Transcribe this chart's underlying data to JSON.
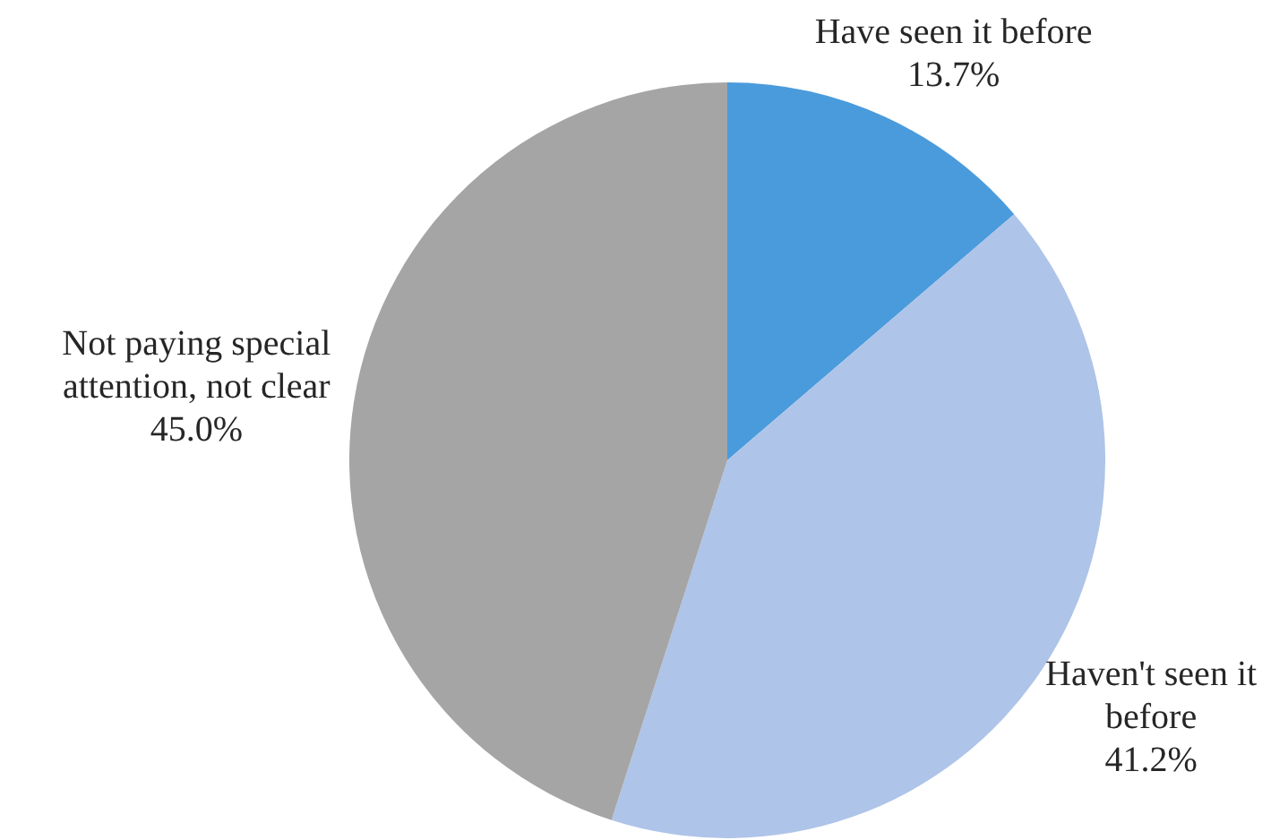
{
  "chart_data": {
    "type": "pie",
    "categories": [
      "Have seen it before",
      "Haven't seen it before",
      "Not paying special attention, not clear"
    ],
    "values": [
      13.7,
      41.2,
      45.0
    ],
    "colors": [
      "#4a9bdc",
      "#aec4e8",
      "#a5a5a5"
    ],
    "value_labels": [
      "13.7%",
      "41.2%",
      "45.0%"
    ]
  }
}
